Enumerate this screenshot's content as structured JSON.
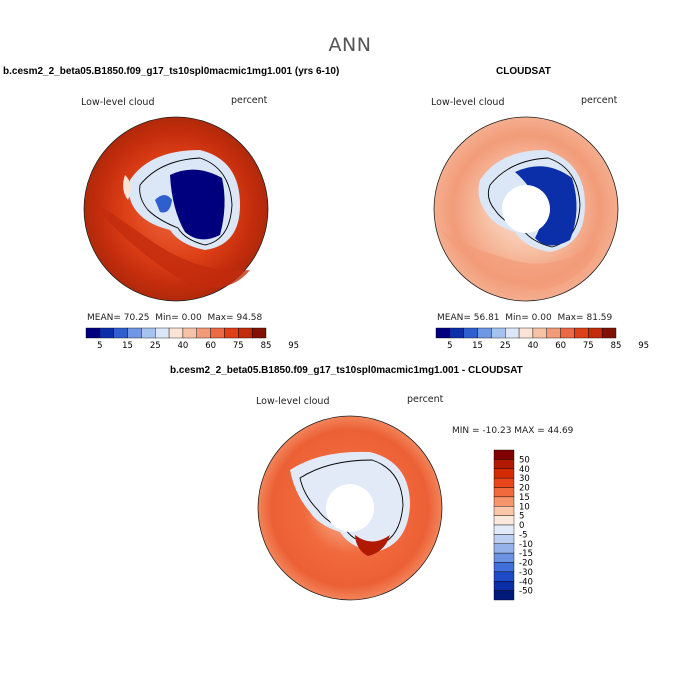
{
  "main_title": "ANN",
  "panels": [
    {
      "id": "model",
      "header": "b.cesm2_2_beta05.B1850.f09_g17_ts10spl0macmic1mg1.001 (yrs 6-10)",
      "variable": "Low-level cloud",
      "units": "percent",
      "stats": {
        "mean_label": "MEAN=",
        "mean": "70.25",
        "min_label": "Min=",
        "min": "0.00",
        "max_label": "Max=",
        "max": "94.58"
      },
      "colorbar_labels": [
        "5",
        "15",
        "25",
        "40",
        "60",
        "75",
        "85",
        "95"
      ]
    },
    {
      "id": "obs",
      "header": "CLOUDSAT",
      "variable": "Low-level cloud",
      "units": "percent",
      "stats": {
        "mean_label": "MEAN=",
        "mean": "56.81",
        "min_label": "Min=",
        "min": "0.00",
        "max_label": "Max=",
        "max": "81.59"
      },
      "colorbar_labels": [
        "5",
        "15",
        "25",
        "40",
        "60",
        "75",
        "85",
        "95"
      ]
    },
    {
      "id": "diff",
      "header": "b.cesm2_2_beta05.B1850.f09_g17_ts10spl0macmic1mg1.001 - CLOUDSAT",
      "variable": "Low-level cloud",
      "units": "percent",
      "stats_line": "MIN = -10.23 MAX =  44.69",
      "colorbar_labels": [
        "50",
        "40",
        "30",
        "20",
        "15",
        "10",
        "5",
        "0",
        "-5",
        "-10",
        "-15",
        "-20",
        "-30",
        "-40",
        "-50"
      ]
    }
  ],
  "colors": {
    "abs_scale": [
      "#00007f",
      "#0a2fa8",
      "#2f5fcf",
      "#6f97e3",
      "#a6c3ef",
      "#dbe6f6",
      "#fbe3d5",
      "#f7c1a5",
      "#f29b79",
      "#ec6a43",
      "#de4017",
      "#c22c0c",
      "#811103"
    ],
    "diff_scale": [
      "#800000",
      "#b11a00",
      "#d42a00",
      "#e8461a",
      "#f06a3d",
      "#f6946c",
      "#fbc7a9",
      "#fde9dc",
      "#e2eaf8",
      "#bccff2",
      "#95b3ea",
      "#6c93e2",
      "#3f6fd9",
      "#1e4cc9",
      "#0a2ea6",
      "#001a7a"
    ]
  }
}
